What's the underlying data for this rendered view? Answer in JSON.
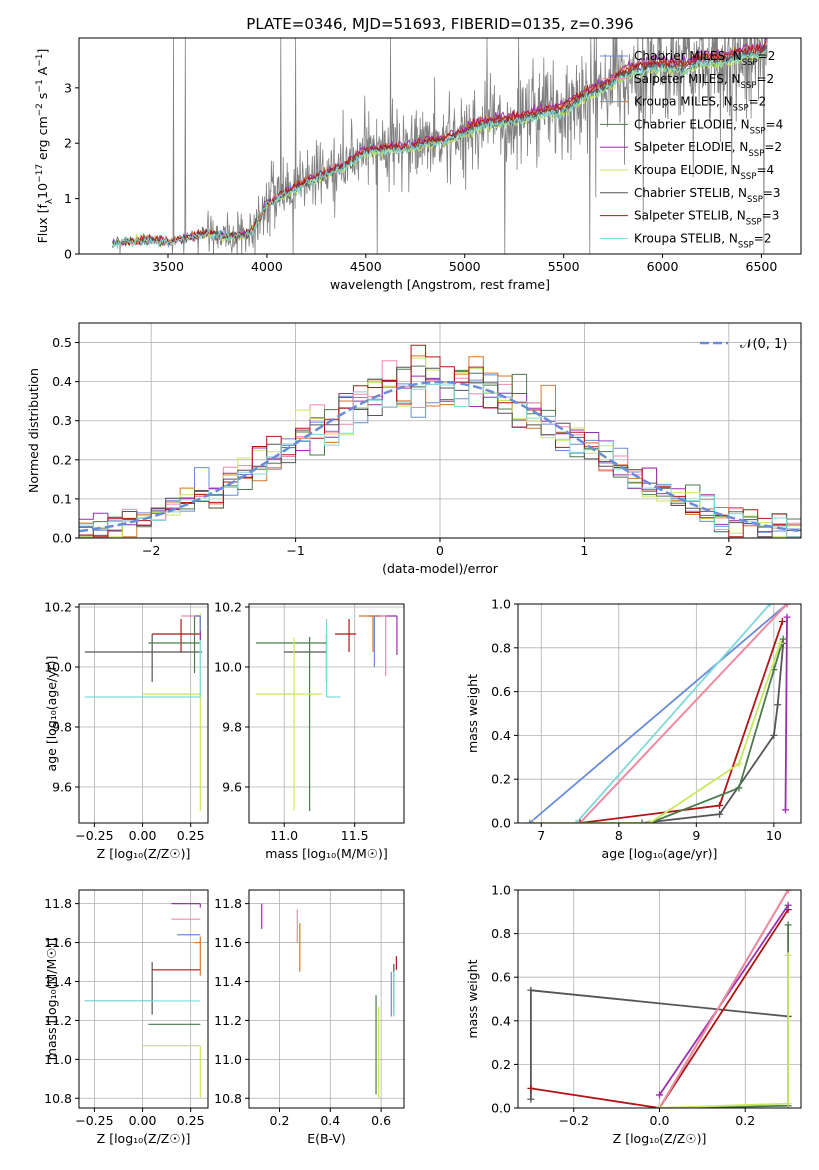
{
  "figure_title": "PLATE=0346, MJD=51693, FIBERID=0135, z=0.396",
  "colors": {
    "chabrier_miles": "#6a8cd8",
    "salpeter_miles": "#f08aa8",
    "kroupa_miles": "#d9762b",
    "chabrier_elodie": "#4c7a4c",
    "salpeter_elodie": "#9b2fae",
    "kroupa_elodie": "#c8e860",
    "chabrier_stelib": "#555555",
    "salpeter_stelib": "#b01515",
    "kroupa_stelib": "#7fd8d8",
    "data": "#808080",
    "gauss": "#6a8cd8"
  },
  "chart_data": [
    {
      "id": "spectrum",
      "type": "line",
      "title": "PLATE=0346, MJD=51693, FIBERID=0135, z=0.396",
      "xlabel": "wavelength [Angstrom, rest frame]",
      "ylabel": "Flux [f_λ 10^-17 erg cm^-2 s^-1 A^-1]",
      "xlim": [
        3050,
        6700
      ],
      "ylim": [
        0,
        3.9
      ],
      "xticks": [
        3500,
        4000,
        4500,
        5000,
        5500,
        6000,
        6500
      ],
      "yticks": [
        0,
        1,
        2,
        3
      ],
      "legend_position": "upper right",
      "legend": [
        "Chabrier MILES, N_SSP=2",
        "Salpeter MILES, N_SSP=2",
        "Kroupa MILES, N_SSP=2",
        "Chabrier ELODIE, N_SSP=4",
        "Salpeter ELODIE, N_SSP=2",
        "Kroupa ELODIE, N_SSP=4",
        "Chabrier STELIB, N_SSP=3",
        "Salpeter STELIB, N_SSP=3",
        "Kroupa STELIB, N_SSP=2"
      ],
      "model_continuum": {
        "x": [
          3220,
          3300,
          3400,
          3500,
          3600,
          3700,
          3800,
          3900,
          3950,
          4000,
          4100,
          4200,
          4300,
          4400,
          4500,
          4600,
          4700,
          4800,
          4900,
          5000,
          5100,
          5200,
          5300,
          5400,
          5500,
          5600,
          5700,
          5800,
          5900,
          6000,
          6100,
          6200,
          6300,
          6400,
          6500,
          6530
        ],
        "y": [
          0.2,
          0.23,
          0.25,
          0.22,
          0.3,
          0.38,
          0.3,
          0.35,
          0.55,
          0.9,
          1.1,
          1.3,
          1.45,
          1.6,
          1.85,
          1.9,
          1.9,
          2.0,
          2.05,
          2.2,
          2.35,
          2.4,
          2.45,
          2.55,
          2.6,
          2.85,
          3.0,
          3.25,
          3.35,
          3.4,
          3.35,
          3.5,
          3.5,
          3.6,
          3.65,
          3.75
        ]
      },
      "data_noise_note": ""
    },
    {
      "id": "residuals",
      "type": "histogram",
      "xlabel": "(data-model)/error",
      "ylabel": "Normed distribution",
      "xlim": [
        -2.5,
        2.5
      ],
      "ylim": [
        0,
        0.55
      ],
      "xticks": [
        -2,
        -1,
        0,
        1,
        2
      ],
      "yticks": [
        0.0,
        0.1,
        0.2,
        0.3,
        0.4,
        0.5
      ],
      "bin_start": -2.5,
      "bin_width": 0.1,
      "reference_curve": "N(0, 1)",
      "legend": [
        "𝒩(0, 1)"
      ],
      "legend_position": "upper right",
      "grid": true
    },
    {
      "id": "age_vs_Z",
      "type": "errorbar",
      "xlabel": "Z [log10(Z/Z⊙)]",
      "ylabel": "age [log10(age/yr)]",
      "xlim": [
        -0.33,
        0.34
      ],
      "ylim": [
        9.48,
        10.21
      ],
      "xticks": [
        -0.25,
        0.0,
        0.25
      ],
      "yticks": [
        9.6,
        9.8,
        10.0,
        10.2
      ],
      "grid": true,
      "points": [
        {
          "model": "chabrier_stelib",
          "x": 0.05,
          "xerr": [
            0.35,
            0.26
          ],
          "y": 10.05,
          "yerr": [
            0.1,
            0.06
          ]
        },
        {
          "model": "salpeter_stelib",
          "x": 0.2,
          "xerr": [
            0.15,
            0.1
          ],
          "y": 10.11,
          "yerr": [
            0.06,
            0.05
          ]
        },
        {
          "model": "chabrier_elodie",
          "x": 0.27,
          "xerr": [
            0.24,
            0.03
          ],
          "y": 10.08,
          "yerr": [
            0.1,
            0.09
          ]
        },
        {
          "model": "kroupa_elodie",
          "x": 0.3,
          "xerr": [
            0.3,
            0.0
          ],
          "y": 9.91,
          "yerr": [
            0.39,
            0.27
          ]
        },
        {
          "model": "kroupa_stelib",
          "x": 0.3,
          "xerr": [
            0.6,
            0.0
          ],
          "y": 9.9,
          "yerr": [
            0.0,
            0.27
          ]
        },
        {
          "model": "salpeter_elodie",
          "x": 0.3,
          "xerr": [
            0.03,
            0.0
          ],
          "y": 10.17,
          "yerr": [
            0.08,
            0.0
          ]
        },
        {
          "model": "salpeter_miles",
          "x": 0.3,
          "xerr": [
            0.1,
            0.0
          ],
          "y": 10.17,
          "yerr": [
            0.05,
            0.0
          ]
        },
        {
          "model": "kroupa_miles",
          "x": 0.3,
          "xerr": [
            0.03,
            0.0
          ],
          "y": 10.17,
          "yerr": [
            0.05,
            0.0
          ]
        },
        {
          "model": "chabrier_miles",
          "x": 0.3,
          "xerr": [
            0.03,
            0.0
          ],
          "y": 10.17,
          "yerr": [
            0.05,
            0.0
          ]
        }
      ]
    },
    {
      "id": "age_vs_mass",
      "type": "errorbar",
      "xlabel": "mass [log10(M/M⊙)]",
      "ylabel": "",
      "xlim": [
        10.75,
        11.85
      ],
      "ylim": [
        9.48,
        10.21
      ],
      "xticks": [
        11.0,
        11.5
      ],
      "yticks": [
        9.6,
        9.8,
        10.0,
        10.2
      ],
      "grid": true,
      "points": [
        {
          "model": "chabrier_stelib",
          "x": 11.3,
          "xerr": [
            0.3,
            0.0
          ],
          "y": 10.05,
          "yerr": [
            0.1,
            0.06
          ]
        },
        {
          "model": "salpeter_stelib",
          "x": 11.46,
          "xerr": [
            0.1,
            0.05
          ],
          "y": 10.11,
          "yerr": [
            0.06,
            0.05
          ]
        },
        {
          "model": "chabrier_elodie",
          "x": 11.18,
          "xerr": [
            0.38,
            0.12
          ],
          "y": 10.08,
          "yerr": [
            0.56,
            0.02
          ]
        },
        {
          "model": "kroupa_elodie",
          "x": 11.07,
          "xerr": [
            0.27,
            0.2
          ],
          "y": 9.91,
          "yerr": [
            0.39,
            0.19
          ]
        },
        {
          "model": "kroupa_stelib",
          "x": 11.3,
          "xerr": [
            0.0,
            0.1
          ],
          "y": 9.9,
          "yerr": [
            0.0,
            0.26
          ]
        },
        {
          "model": "salpeter_elodie",
          "x": 11.8,
          "xerr": [
            0.2,
            0.0
          ],
          "y": 10.17,
          "yerr": [
            0.13,
            0.0
          ]
        },
        {
          "model": "salpeter_miles",
          "x": 11.72,
          "xerr": [
            0.1,
            0.0
          ],
          "y": 10.17,
          "yerr": [
            0.2,
            0.0
          ]
        },
        {
          "model": "kroupa_miles",
          "x": 11.63,
          "xerr": [
            0.1,
            0.05
          ],
          "y": 10.17,
          "yerr": [
            0.12,
            0.0
          ]
        },
        {
          "model": "chabrier_miles",
          "x": 11.64,
          "xerr": [
            0.0,
            0.0
          ],
          "y": 10.17,
          "yerr": [
            0.17,
            0.0
          ]
        }
      ]
    },
    {
      "id": "cum_mass_vs_age",
      "type": "line",
      "xlabel": "age [log10(age/yr)]",
      "ylabel": "mass weight",
      "xlim": [
        6.7,
        10.35
      ],
      "ylim": [
        0,
        1.0
      ],
      "xticks": [
        7,
        8,
        9,
        10
      ],
      "yticks": [
        0.0,
        0.2,
        0.4,
        0.6,
        0.8,
        1.0
      ],
      "grid": true,
      "series": [
        {
          "model": "chabrier_miles",
          "x": [
            6.85,
            10.17
          ],
          "y": [
            0.0,
            1.0
          ]
        },
        {
          "model": "kroupa_stelib",
          "x": [
            7.45,
            9.95
          ],
          "y": [
            0.0,
            1.0
          ]
        },
        {
          "model": "kroupa_miles",
          "x": [
            7.5,
            10.17
          ],
          "y": [
            0.0,
            1.0
          ]
        },
        {
          "model": "salpeter_miles",
          "x": [
            7.5,
            10.17
          ],
          "y": [
            0.0,
            1.0
          ]
        },
        {
          "model": "chabrier_stelib",
          "x": [
            8.3,
            9.3,
            10.0,
            10.05,
            10.12
          ],
          "y": [
            0.0,
            0.04,
            0.4,
            0.54,
            0.82
          ]
        },
        {
          "model": "salpeter_stelib",
          "x": [
            7.5,
            9.3,
            10.11
          ],
          "y": [
            0.0,
            0.08,
            0.92
          ]
        },
        {
          "model": "salpeter_elodie",
          "x": [
            10.15,
            10.17
          ],
          "y": [
            0.06,
            0.94
          ]
        },
        {
          "model": "chabrier_elodie",
          "x": [
            8.4,
            9.55,
            10.0,
            10.12
          ],
          "y": [
            0.0,
            0.16,
            0.7,
            0.84
          ]
        },
        {
          "model": "kroupa_elodie",
          "x": [
            6.9,
            8.4,
            9.55,
            10.08
          ],
          "y": [
            0.0,
            0.0,
            0.27,
            0.82
          ]
        }
      ]
    },
    {
      "id": "mass_vs_Z",
      "type": "errorbar",
      "xlabel": "Z [log10(Z/Z⊙)]",
      "ylabel": "mass [log10(M/M⊙)]",
      "xlim": [
        -0.33,
        0.34
      ],
      "ylim": [
        10.75,
        11.87
      ],
      "xticks": [
        -0.25,
        0.0,
        0.25
      ],
      "yticks": [
        10.8,
        11.0,
        11.2,
        11.4,
        11.6,
        11.8
      ],
      "grid": true,
      "points": [
        {
          "model": "chabrier_stelib",
          "x": 0.05,
          "xerr": [
            0.35,
            0.0
          ],
          "y": 11.3,
          "yerr": [
            0.07,
            0.2
          ]
        },
        {
          "model": "salpeter_stelib",
          "x": 0.2,
          "xerr": [
            0.15,
            0.1
          ],
          "y": 11.46,
          "yerr": [
            0.0,
            0.0
          ]
        },
        {
          "model": "chabrier_elodie",
          "x": 0.3,
          "xerr": [
            0.27,
            0.0
          ],
          "y": 11.18,
          "yerr": [
            0.0,
            0.0
          ]
        },
        {
          "model": "kroupa_elodie",
          "x": 0.3,
          "xerr": [
            0.3,
            0.0
          ],
          "y": 11.07,
          "yerr": [
            0.27,
            0.0
          ]
        },
        {
          "model": "kroupa_stelib",
          "x": 0.3,
          "xerr": [
            0.6,
            0.0
          ],
          "y": 11.3,
          "yerr": [
            0.0,
            0.0
          ]
        },
        {
          "model": "salpeter_elodie",
          "x": 0.3,
          "xerr": [
            0.15,
            0.0
          ],
          "y": 11.8,
          "yerr": [
            0.02,
            0.0
          ]
        },
        {
          "model": "salpeter_miles",
          "x": 0.3,
          "xerr": [
            0.15,
            0.0
          ],
          "y": 11.72,
          "yerr": [
            0.0,
            0.0
          ]
        },
        {
          "model": "kroupa_miles",
          "x": 0.3,
          "xerr": [
            0.03,
            0.0
          ],
          "y": 11.6,
          "yerr": [
            0.17,
            0.03
          ]
        },
        {
          "model": "chabrier_miles",
          "x": 0.3,
          "xerr": [
            0.12,
            0.0
          ],
          "y": 11.64,
          "yerr": [
            0.0,
            0.0
          ]
        }
      ]
    },
    {
      "id": "mass_vs_ebv",
      "type": "errorbar",
      "xlabel": "E(B-V)",
      "ylabel": "",
      "xlim": [
        0.08,
        0.69
      ],
      "ylim": [
        10.75,
        11.87
      ],
      "xticks": [
        0.2,
        0.4,
        0.6
      ],
      "yticks": [
        10.8,
        11.0,
        11.2,
        11.4,
        11.6,
        11.8
      ],
      "grid": true,
      "points": [
        {
          "model": "salpeter_elodie",
          "x": 0.13,
          "y": 11.8,
          "yerr": [
            0.13,
            0.0
          ]
        },
        {
          "model": "salpeter_miles",
          "x": 0.27,
          "y": 11.7,
          "yerr": [
            0.1,
            0.07
          ]
        },
        {
          "model": "kroupa_miles",
          "x": 0.28,
          "y": 11.6,
          "yerr": [
            0.15,
            0.1
          ]
        },
        {
          "model": "chabrier_elodie",
          "x": 0.58,
          "y": 11.18,
          "yerr": [
            0.36,
            0.15
          ]
        },
        {
          "model": "kroupa_elodie",
          "x": 0.59,
          "y": 11.07,
          "yerr": [
            0.27,
            0.2
          ]
        },
        {
          "model": "chabrier_stelib",
          "x": 0.65,
          "y": 11.36,
          "yerr": [
            0.13,
            0.13
          ]
        },
        {
          "model": "salpeter_stelib",
          "x": 0.66,
          "y": 11.46,
          "yerr": [
            0.0,
            0.07
          ]
        },
        {
          "model": "chabrier_miles",
          "x": 0.64,
          "y": 11.35,
          "yerr": [
            0.13,
            0.1
          ]
        },
        {
          "model": "kroupa_stelib",
          "x": 0.65,
          "y": 11.35,
          "yerr": [
            0.13,
            0.1
          ]
        }
      ]
    },
    {
      "id": "cum_mass_vs_Z",
      "type": "line",
      "xlabel": "Z [log10(Z/Z⊙)]",
      "ylabel": "mass weight",
      "xlim": [
        -0.33,
        0.33
      ],
      "ylim": [
        0,
        1.0
      ],
      "xticks": [
        -0.2,
        0.0,
        0.2
      ],
      "yticks": [
        0.0,
        0.2,
        0.4,
        0.6,
        0.8,
        1.0
      ],
      "grid": true,
      "series": [
        {
          "model": "chabrier_stelib",
          "x": [
            -0.3,
            -0.3,
            0.3
          ],
          "y": [
            0.04,
            0.54,
            0.42
          ]
        },
        {
          "model": "salpeter_stelib",
          "x": [
            -0.3,
            0.0,
            0.3
          ],
          "y": [
            0.09,
            0.0,
            0.91
          ]
        },
        {
          "model": "salpeter_elodie",
          "x": [
            0.0,
            0.3
          ],
          "y": [
            0.06,
            0.93
          ]
        },
        {
          "model": "chabrier_miles",
          "x": [
            0.0,
            0.3
          ],
          "y": [
            0.0,
            1.0
          ]
        },
        {
          "model": "kroupa_stelib",
          "x": [
            0.0,
            0.3
          ],
          "y": [
            0.0,
            1.0
          ]
        },
        {
          "model": "kroupa_miles",
          "x": [
            0.0,
            0.3
          ],
          "y": [
            0.0,
            1.0
          ]
        },
        {
          "model": "salpeter_miles",
          "x": [
            0.0,
            0.3
          ],
          "y": [
            0.0,
            1.0
          ]
        },
        {
          "model": "chabrier_elodie",
          "x": [
            0.0,
            0.3,
            0.3
          ],
          "y": [
            0.0,
            0.01,
            0.84
          ]
        },
        {
          "model": "kroupa_elodie",
          "x": [
            0.0,
            0.3,
            0.3
          ],
          "y": [
            0.0,
            0.02,
            0.7
          ]
        }
      ]
    }
  ]
}
